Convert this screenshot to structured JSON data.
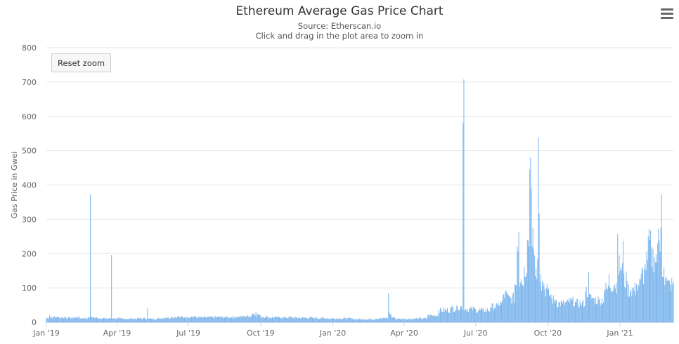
{
  "chart_title": "Ethereum Average Gas Price Chart",
  "subtitle_source": "Source: Etherscan.io",
  "subtitle_hint": "Click and drag in the plot area to zoom in",
  "reset_zoom_label": "Reset zoom",
  "menu_icon": "hamburger-menu-icon",
  "colors": {
    "bar": "#7cb5ec",
    "grid": "#e6e6e6",
    "axis": "#ccd6eb",
    "text": "#666666"
  },
  "chart_data": {
    "type": "bar",
    "title": "Ethereum Average Gas Price Chart",
    "ylabel": "Gas Price in Gwei",
    "xlabel": "",
    "ylim": [
      0,
      800
    ],
    "yticks": [
      0,
      100,
      200,
      300,
      400,
      500,
      600,
      700,
      800
    ],
    "xrange": [
      "2019-01-01",
      "2021-03-10"
    ],
    "xticks": [
      {
        "date": "2019-01-01",
        "label": "Jan '19"
      },
      {
        "date": "2019-04-01",
        "label": "Apr '19"
      },
      {
        "date": "2019-07-01",
        "label": "Jul '19"
      },
      {
        "date": "2019-10-01",
        "label": "Oct '19"
      },
      {
        "date": "2020-01-01",
        "label": "Jan '20"
      },
      {
        "date": "2020-04-01",
        "label": "Apr '20"
      },
      {
        "date": "2020-07-01",
        "label": "Jul '20"
      },
      {
        "date": "2020-10-01",
        "label": "Oct '20"
      },
      {
        "date": "2021-01-01",
        "label": "Jan '21"
      }
    ],
    "grid": true,
    "legend": "none",
    "series": [
      {
        "points": [
          [
            "2019-01-01",
            12
          ],
          [
            "2019-01-05",
            20
          ],
          [
            "2019-01-10",
            15
          ],
          [
            "2019-01-15",
            17
          ],
          [
            "2019-01-20",
            14
          ],
          [
            "2019-01-25",
            16
          ],
          [
            "2019-01-31",
            13
          ],
          [
            "2019-02-06",
            15
          ],
          [
            "2019-02-12",
            14
          ],
          [
            "2019-02-18",
            12
          ],
          [
            "2019-02-24",
            15
          ],
          [
            "2019-02-26",
            372
          ],
          [
            "2019-03-02",
            15
          ],
          [
            "2019-03-08",
            13
          ],
          [
            "2019-03-14",
            12
          ],
          [
            "2019-03-20",
            11
          ],
          [
            "2019-03-25",
            196
          ],
          [
            "2019-03-28",
            12
          ],
          [
            "2019-04-05",
            11
          ],
          [
            "2019-04-12",
            10
          ],
          [
            "2019-04-20",
            10
          ],
          [
            "2019-04-28",
            12
          ],
          [
            "2019-05-05",
            11
          ],
          [
            "2019-05-10",
            40
          ],
          [
            "2019-05-15",
            10
          ],
          [
            "2019-05-25",
            12
          ],
          [
            "2019-06-01",
            14
          ],
          [
            "2019-06-10",
            18
          ],
          [
            "2019-06-20",
            15
          ],
          [
            "2019-06-30",
            16
          ],
          [
            "2019-07-10",
            17
          ],
          [
            "2019-07-20",
            14
          ],
          [
            "2019-08-01",
            16
          ],
          [
            "2019-08-15",
            15
          ],
          [
            "2019-08-30",
            16
          ],
          [
            "2019-09-10",
            18
          ],
          [
            "2019-09-20",
            25
          ],
          [
            "2019-09-25",
            30
          ],
          [
            "2019-09-30",
            22
          ],
          [
            "2019-10-10",
            16
          ],
          [
            "2019-10-25",
            14
          ],
          [
            "2019-11-10",
            15
          ],
          [
            "2019-11-25",
            13
          ],
          [
            "2019-12-10",
            14
          ],
          [
            "2019-12-25",
            12
          ],
          [
            "2020-01-10",
            11
          ],
          [
            "2020-01-25",
            12
          ],
          [
            "2020-02-10",
            9
          ],
          [
            "2020-02-25",
            11
          ],
          [
            "2020-03-05",
            12
          ],
          [
            "2020-03-12",
            84
          ],
          [
            "2020-03-15",
            25
          ],
          [
            "2020-03-20",
            14
          ],
          [
            "2020-04-01",
            10
          ],
          [
            "2020-04-15",
            11
          ],
          [
            "2020-05-01",
            20
          ],
          [
            "2020-05-15",
            35
          ],
          [
            "2020-05-30",
            40
          ],
          [
            "2020-06-08",
            45
          ],
          [
            "2020-06-15",
            580
          ],
          [
            "2020-06-16",
            708
          ],
          [
            "2020-06-18",
            38
          ],
          [
            "2020-06-30",
            40
          ],
          [
            "2020-07-10",
            35
          ],
          [
            "2020-07-20",
            45
          ],
          [
            "2020-07-30",
            55
          ],
          [
            "2020-08-05",
            80
          ],
          [
            "2020-08-10",
            85
          ],
          [
            "2020-08-15",
            70
          ],
          [
            "2020-08-20",
            110
          ],
          [
            "2020-08-23",
            220
          ],
          [
            "2020-08-25",
            262
          ],
          [
            "2020-08-28",
            125
          ],
          [
            "2020-09-01",
            160
          ],
          [
            "2020-09-05",
            240
          ],
          [
            "2020-09-08",
            445
          ],
          [
            "2020-09-09",
            480
          ],
          [
            "2020-09-10",
            390
          ],
          [
            "2020-09-12",
            275
          ],
          [
            "2020-09-14",
            195
          ],
          [
            "2020-09-16",
            160
          ],
          [
            "2020-09-18",
            185
          ],
          [
            "2020-09-19",
            538
          ],
          [
            "2020-09-20",
            317
          ],
          [
            "2020-09-22",
            140
          ],
          [
            "2020-09-26",
            115
          ],
          [
            "2020-10-01",
            95
          ],
          [
            "2020-10-05",
            80
          ],
          [
            "2020-10-12",
            65
          ],
          [
            "2020-10-20",
            55
          ],
          [
            "2020-10-28",
            70
          ],
          [
            "2020-11-05",
            60
          ],
          [
            "2020-11-12",
            55
          ],
          [
            "2020-11-18",
            90
          ],
          [
            "2020-11-22",
            145
          ],
          [
            "2020-11-28",
            70
          ],
          [
            "2020-12-05",
            65
          ],
          [
            "2020-12-12",
            95
          ],
          [
            "2020-12-18",
            140
          ],
          [
            "2020-12-25",
            110
          ],
          [
            "2020-12-29",
            257
          ],
          [
            "2021-01-02",
            160
          ],
          [
            "2021-01-05",
            237
          ],
          [
            "2021-01-10",
            120
          ],
          [
            "2021-01-15",
            95
          ],
          [
            "2021-01-22",
            110
          ],
          [
            "2021-01-28",
            140
          ],
          [
            "2021-02-02",
            170
          ],
          [
            "2021-02-06",
            250
          ],
          [
            "2021-02-10",
            220
          ],
          [
            "2021-02-14",
            190
          ],
          [
            "2021-02-18",
            230
          ],
          [
            "2021-02-22",
            275
          ],
          [
            "2021-02-23",
            372
          ],
          [
            "2021-02-26",
            160
          ],
          [
            "2021-03-02",
            120
          ],
          [
            "2021-03-06",
            110
          ],
          [
            "2021-03-10",
            118
          ]
        ]
      }
    ]
  }
}
